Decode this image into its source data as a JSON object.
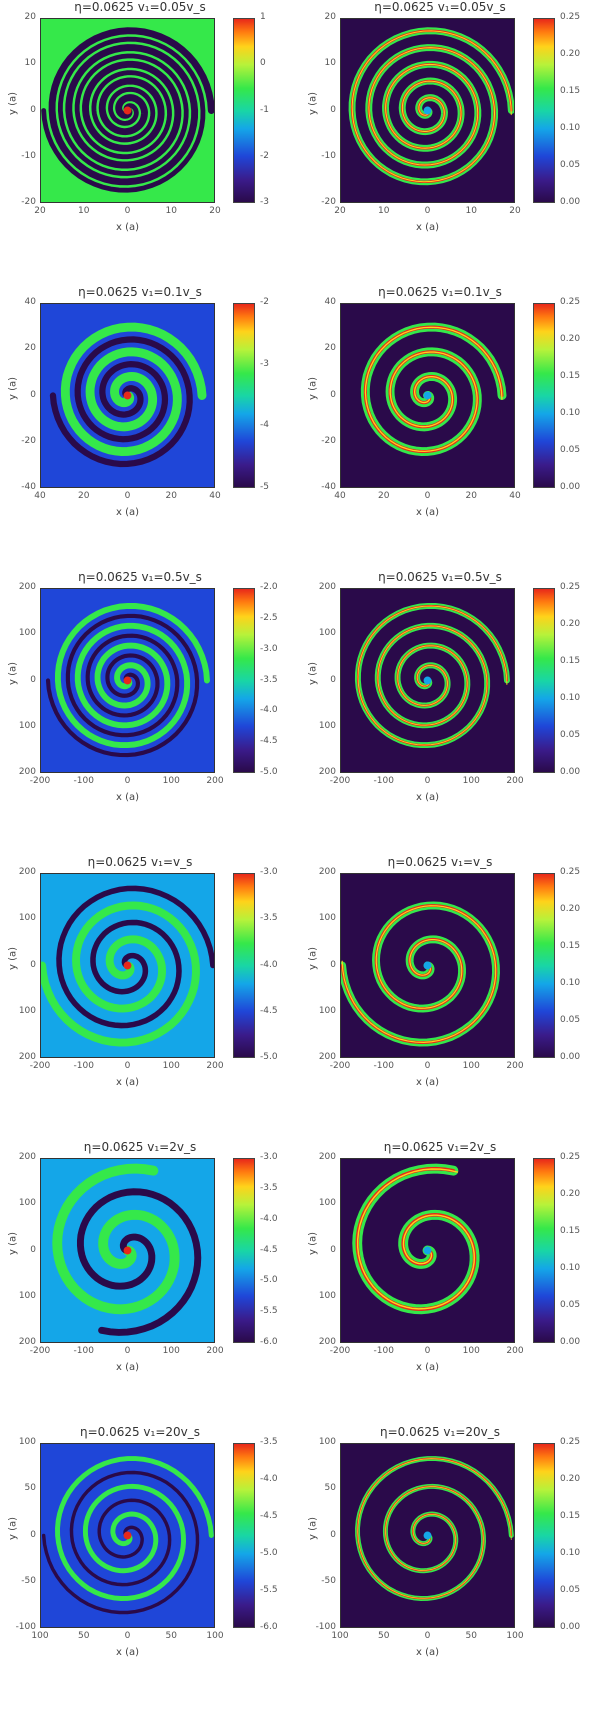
{
  "figure": {
    "rows": [
      {
        "left": {
          "title": "η=0.0625  v₁=0.05v_s",
          "xlabel": "x (a)",
          "ylabel": "y (a)",
          "xticks": [
            "20",
            "10",
            "0",
            "10",
            "20"
          ],
          "yticks": [
            "20",
            "10",
            "0",
            "-10",
            "-20"
          ],
          "cbar_ticks": [
            "1",
            "0",
            "-1",
            "-2",
            "-3"
          ]
        },
        "right": {
          "title": "η=0.0625  v₁=0.05v_s",
          "xlabel": "x (a)",
          "ylabel": "y (a)",
          "xticks": [
            "20",
            "10",
            "0",
            "10",
            "20"
          ],
          "yticks": [
            "20",
            "10",
            "0",
            "-10",
            "-20"
          ],
          "cbar_ticks": [
            "0.25",
            "0.20",
            "0.15",
            "0.10",
            "0.05",
            "0.00"
          ]
        }
      },
      {
        "left": {
          "title": "η=0.0625  v₁=0.1v_s",
          "xlabel": "x (a)",
          "ylabel": "y (a)",
          "xticks": [
            "40",
            "20",
            "0",
            "20",
            "40"
          ],
          "yticks": [
            "40",
            "20",
            "0",
            "-20",
            "-40"
          ],
          "cbar_ticks": [
            "-2",
            "-3",
            "-4",
            "-5"
          ]
        },
        "right": {
          "title": "η=0.0625  v₁=0.1v_s",
          "xlabel": "x (a)",
          "ylabel": "y (a)",
          "xticks": [
            "40",
            "20",
            "0",
            "20",
            "40"
          ],
          "yticks": [
            "40",
            "20",
            "0",
            "-20",
            "-40"
          ],
          "cbar_ticks": [
            "0.25",
            "0.20",
            "0.15",
            "0.10",
            "0.05",
            "0.00"
          ]
        }
      },
      {
        "left": {
          "title": "η=0.0625  v₁=0.5v_s",
          "xlabel": "x (a)",
          "ylabel": "y (a)",
          "xticks": [
            "-200",
            "-100",
            "0",
            "100",
            "200"
          ],
          "yticks": [
            "200",
            "100",
            "0",
            "100",
            "200"
          ],
          "cbar_ticks": [
            "-2.0",
            "-2.5",
            "-3.0",
            "-3.5",
            "-4.0",
            "-4.5",
            "-5.0"
          ]
        },
        "right": {
          "title": "η=0.0625  v₁=0.5v_s",
          "xlabel": "x (a)",
          "ylabel": "y (a)",
          "xticks": [
            "-200",
            "-100",
            "0",
            "100",
            "200"
          ],
          "yticks": [
            "200",
            "100",
            "0",
            "100",
            "200"
          ],
          "cbar_ticks": [
            "0.25",
            "0.20",
            "0.15",
            "0.10",
            "0.05",
            "0.00"
          ]
        }
      },
      {
        "left": {
          "title": "η=0.0625  v₁=v_s",
          "xlabel": "x (a)",
          "ylabel": "y (a)",
          "xticks": [
            "-200",
            "-100",
            "0",
            "100",
            "200"
          ],
          "yticks": [
            "200",
            "100",
            "0",
            "100",
            "200"
          ],
          "cbar_ticks": [
            "-3.0",
            "-3.5",
            "-4.0",
            "-4.5",
            "-5.0"
          ]
        },
        "right": {
          "title": "η=0.0625  v₁=v_s",
          "xlabel": "x (a)",
          "ylabel": "y (a)",
          "xticks": [
            "-200",
            "-100",
            "0",
            "100",
            "200"
          ],
          "yticks": [
            "200",
            "100",
            "0",
            "100",
            "200"
          ],
          "cbar_ticks": [
            "0.25",
            "0.20",
            "0.15",
            "0.10",
            "0.05",
            "0.00"
          ]
        }
      },
      {
        "left": {
          "title": "η=0.0625  v₁=2v_s",
          "xlabel": "x (a)",
          "ylabel": "y (a)",
          "xticks": [
            "-200",
            "-100",
            "0",
            "100",
            "200"
          ],
          "yticks": [
            "200",
            "100",
            "0",
            "100",
            "200"
          ],
          "cbar_ticks": [
            "-3.0",
            "-3.5",
            "-4.0",
            "-4.5",
            "-5.0",
            "-5.5",
            "-6.0"
          ]
        },
        "right": {
          "title": "η=0.0625  v₁=2v_s",
          "xlabel": "x (a)",
          "ylabel": "y (a)",
          "xticks": [
            "-200",
            "-100",
            "0",
            "100",
            "200"
          ],
          "yticks": [
            "200",
            "100",
            "0",
            "100",
            "200"
          ],
          "cbar_ticks": [
            "0.25",
            "0.20",
            "0.15",
            "0.10",
            "0.05",
            "0.00"
          ]
        }
      },
      {
        "left": {
          "title": "η=0.0625  v₁=20v_s",
          "xlabel": "x (a)",
          "ylabel": "y (a)",
          "xticks": [
            "100",
            "50",
            "0",
            "50",
            "100"
          ],
          "yticks": [
            "100",
            "50",
            "0",
            "-50",
            "-100"
          ],
          "cbar_ticks": [
            "-3.5",
            "-4.0",
            "-4.5",
            "-5.0",
            "-5.5",
            "-6.0"
          ]
        },
        "right": {
          "title": "η=0.0625  v₁=20v_s",
          "xlabel": "x (a)",
          "ylabel": "y (a)",
          "xticks": [
            "100",
            "50",
            "0",
            "50",
            "100"
          ],
          "yticks": [
            "100",
            "50",
            "0",
            "-50",
            "-100"
          ],
          "cbar_ticks": [
            "0.25",
            "0.20",
            "0.15",
            "0.10",
            "0.05",
            "0.00"
          ]
        }
      }
    ]
  },
  "colors": {
    "deep": "#2a0a4a",
    "blue": "#1f46d8",
    "cyan": "#14a6e8",
    "green": "#35e84a",
    "yellow": "#ffd21a",
    "red": "#e8281a"
  }
}
